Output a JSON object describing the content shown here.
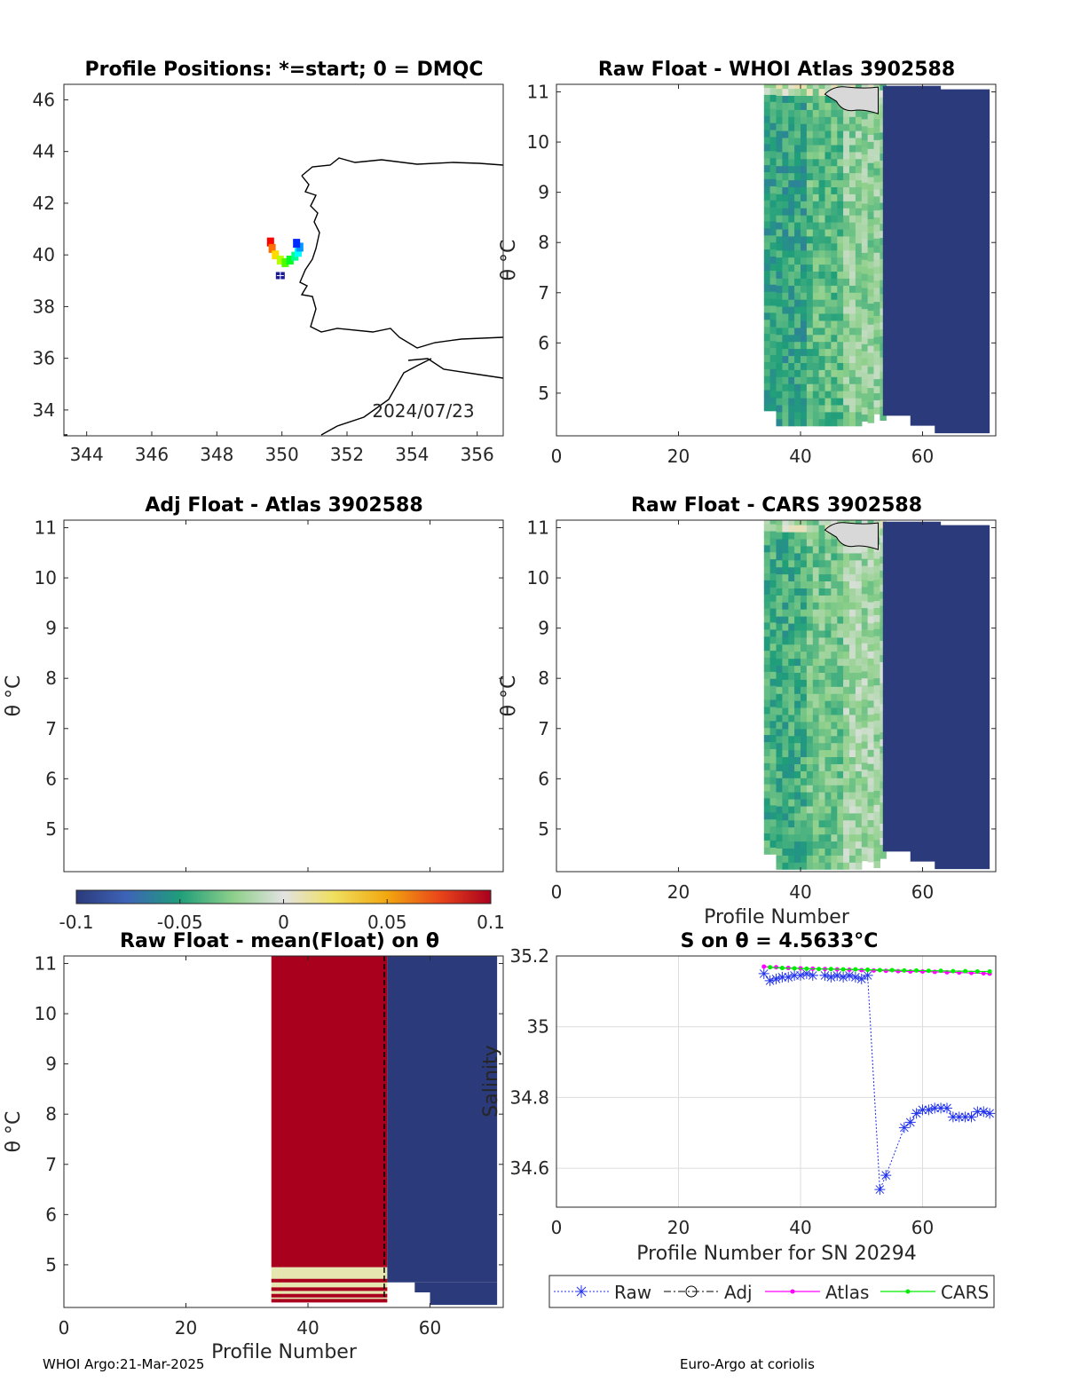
{
  "footer": {
    "left": "WHOI Argo:21-Mar-2025",
    "right": "Euro-Argo at coriolis"
  },
  "colorbar": {
    "ticks": [
      "-0.1",
      "-0.05",
      "0",
      "0.05",
      "0.1"
    ],
    "range": [
      -0.1,
      0.1
    ],
    "colormap": "balance (blue-green-grey-yellow-red)"
  },
  "colors": {
    "deep_blue": "#3e5a8f",
    "dmqc_red": "#b5001f",
    "raw_marker": "#2233ee",
    "atlas_line": "#ff00ff",
    "cars_line": "#00ee00"
  },
  "chart_data": [
    {
      "id": "positions",
      "type": "scatter",
      "title": "Profile Positions: *=start; 0 = DMQC",
      "date_label": "2024/07/23",
      "xlim": [
        343.3,
        356.8
      ],
      "ylim": [
        33,
        46.6
      ],
      "xticks": [
        "344",
        "346",
        "348",
        "350",
        "352",
        "354",
        "356"
      ],
      "yticks": [
        "46",
        "44",
        "42",
        "40",
        "38",
        "36",
        "34"
      ],
      "track": [
        {
          "lon": 349.65,
          "lat": 40.5
        },
        {
          "lon": 349.7,
          "lat": 40.25
        },
        {
          "lon": 349.8,
          "lat": 40.0
        },
        {
          "lon": 349.95,
          "lat": 39.8
        },
        {
          "lon": 350.1,
          "lat": 39.7
        },
        {
          "lon": 350.25,
          "lat": 39.8
        },
        {
          "lon": 350.4,
          "lat": 39.95
        },
        {
          "lon": 350.5,
          "lat": 40.1
        },
        {
          "lon": 350.55,
          "lat": 40.3
        },
        {
          "lon": 350.45,
          "lat": 40.45
        }
      ],
      "start": {
        "lon": 349.95,
        "lat": 39.2
      }
    },
    {
      "id": "raw-woa",
      "type": "heatmap",
      "title": "Raw Float - WHOI Atlas  3902588",
      "ylabel": "θ °C",
      "xlim": [
        0,
        72
      ],
      "ylim": [
        4.15,
        11.15
      ],
      "xticks": [
        "0",
        "20",
        "40",
        "60"
      ],
      "yticks": [
        "11",
        "10",
        "9",
        "8",
        "7",
        "6",
        "5"
      ],
      "anomaly_block": {
        "x_start": 34,
        "x_end": 53.5,
        "theta_min": 4.35,
        "mean_offset": -0.035
      },
      "offset_block": {
        "x_start": 53.5,
        "x_end": 71,
        "value": -0.1
      }
    },
    {
      "id": "adj-atlas",
      "type": "heatmap",
      "title": "Adj Float - Atlas  3902588",
      "ylabel": "θ °C",
      "xlim": [
        0,
        72
      ],
      "ylim": [
        4.15,
        11.15
      ],
      "xticks": [],
      "yticks": [
        "11",
        "10",
        "9",
        "8",
        "7",
        "6",
        "5"
      ],
      "empty": true
    },
    {
      "id": "raw-cars",
      "type": "heatmap",
      "title": "Raw Float - CARS  3902588",
      "ylabel": "θ °C",
      "xlabel": "Profile Number",
      "xlim": [
        0,
        72
      ],
      "ylim": [
        4.15,
        11.15
      ],
      "xticks": [
        "0",
        "20",
        "40",
        "60"
      ],
      "yticks": [
        "11",
        "10",
        "9",
        "8",
        "7",
        "6",
        "5"
      ],
      "anomaly_block": {
        "x_start": 34,
        "x_end": 53.5,
        "theta_min": 4.2,
        "mean_offset": -0.03
      },
      "offset_block": {
        "x_start": 53.5,
        "x_end": 71,
        "value": -0.1
      }
    },
    {
      "id": "raw-mean",
      "type": "heatmap",
      "title": "Raw Float - mean(Float) on θ",
      "ylabel": "θ °C",
      "xlabel": "Profile Number",
      "xlim": [
        0,
        72
      ],
      "ylim": [
        4.15,
        11.15
      ],
      "xticks": [
        "0",
        "20",
        "40",
        "60"
      ],
      "yticks": [
        "11",
        "10",
        "9",
        "8",
        "7",
        "6",
        "5"
      ],
      "positive_block": {
        "x_start": 34,
        "x_end": 53,
        "value": 0.1
      },
      "negative_block": {
        "x_start": 53,
        "x_end": 71,
        "value": -0.1
      }
    },
    {
      "id": "salinity",
      "type": "line",
      "title": "S on θ = 4.5633°C",
      "xlabel": "Profile Number for SN 20294",
      "ylabel": "Salinity",
      "xlim": [
        0,
        72
      ],
      "ylim": [
        34.49,
        35.2
      ],
      "xticks": [
        "0",
        "20",
        "40",
        "60"
      ],
      "yticks": [
        "35.2",
        "35",
        "34.8",
        "34.6"
      ],
      "legend": [
        "Raw",
        "Adj",
        "Atlas",
        "CARS"
      ],
      "legend_position": "bottom-outside",
      "series": [
        {
          "name": "Raw",
          "x": [
            34,
            35,
            36,
            37,
            38,
            39,
            40,
            41,
            42,
            44,
            45,
            46,
            47,
            48,
            49,
            50,
            51,
            53,
            54,
            57,
            58,
            59,
            60,
            61,
            62,
            63,
            64,
            65,
            66,
            67,
            68,
            69,
            70,
            71
          ],
          "y": [
            35.15,
            35.13,
            35.135,
            35.14,
            35.14,
            35.145,
            35.145,
            35.15,
            35.145,
            35.145,
            35.14,
            35.145,
            35.14,
            35.145,
            35.14,
            35.135,
            35.145,
            34.54,
            34.58,
            34.715,
            34.73,
            34.755,
            34.765,
            34.765,
            34.77,
            34.77,
            34.77,
            34.745,
            34.745,
            34.745,
            34.745,
            34.76,
            34.76,
            34.755
          ]
        },
        {
          "name": "Adj",
          "x": [],
          "y": []
        },
        {
          "name": "Atlas",
          "x": [
            34,
            36,
            38,
            40,
            42,
            44,
            46,
            48,
            50,
            52,
            54,
            56,
            58,
            60,
            62,
            64,
            66,
            68,
            70,
            71
          ],
          "y": [
            35.17,
            35.168,
            35.166,
            35.165,
            35.164,
            35.163,
            35.162,
            35.161,
            35.16,
            35.159,
            35.158,
            35.157,
            35.156,
            35.156,
            35.155,
            35.154,
            35.153,
            35.152,
            35.151,
            35.15
          ]
        },
        {
          "name": "CARS",
          "x": [
            35,
            37,
            39,
            41,
            43,
            45,
            47,
            49,
            51,
            53,
            55,
            57,
            59,
            61,
            63,
            65,
            67,
            69,
            71
          ],
          "y": [
            35.168,
            35.166,
            35.165,
            35.164,
            35.163,
            35.163,
            35.162,
            35.162,
            35.161,
            35.16,
            35.16,
            35.159,
            35.159,
            35.158,
            35.158,
            35.157,
            35.157,
            35.156,
            35.156
          ]
        }
      ]
    }
  ]
}
